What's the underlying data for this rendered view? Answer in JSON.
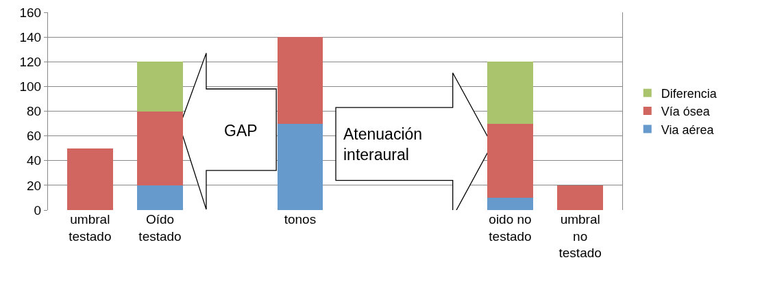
{
  "chart_data": {
    "type": "bar",
    "stacked": true,
    "categories": [
      "umbral testado",
      "Oído testado",
      null,
      "tonos",
      null,
      null,
      "oido no testado",
      "umbral no testado"
    ],
    "series": [
      {
        "name": "Via aérea",
        "color": "#6699cc",
        "values": [
          0,
          20,
          null,
          70,
          null,
          null,
          10,
          0
        ]
      },
      {
        "name": "Vía ósea",
        "color": "#d0665f",
        "values": [
          50,
          60,
          null,
          70,
          null,
          null,
          60,
          20
        ]
      },
      {
        "name": "Diferencia",
        "color": "#a9c46d",
        "values": [
          0,
          40,
          null,
          0,
          null,
          null,
          50,
          0
        ]
      }
    ],
    "ylim": [
      0,
      160
    ],
    "yticks": [
      0,
      20,
      40,
      60,
      80,
      100,
      120,
      140,
      160
    ],
    "grid": "y",
    "legend": "right",
    "annotations": [
      "GAP",
      "Atenuación interaural"
    ]
  }
}
